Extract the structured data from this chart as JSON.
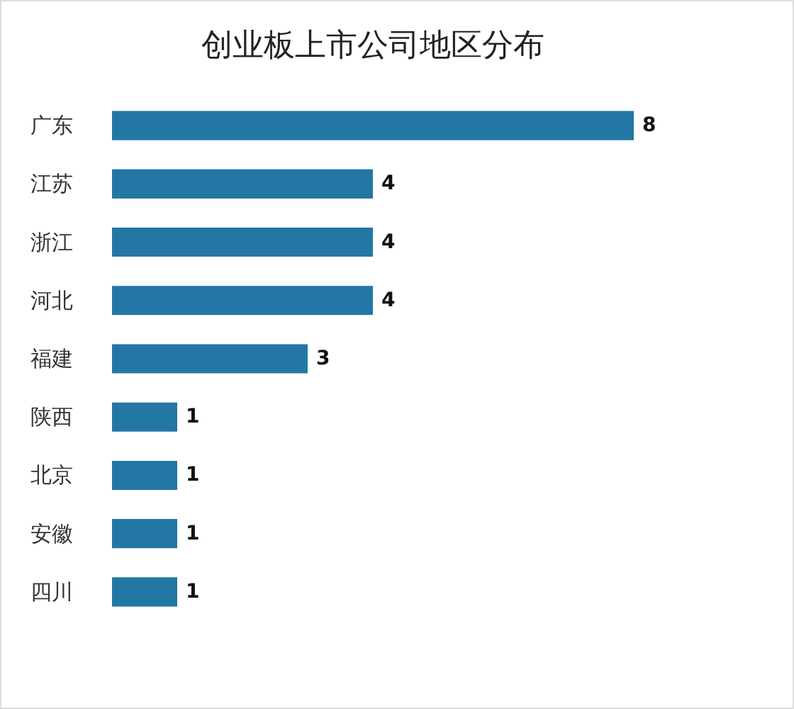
{
  "chart_data": {
    "type": "bar",
    "orientation": "horizontal",
    "title": "创业板上市公司地区分布",
    "categories": [
      "广东",
      "江苏",
      "浙江",
      "河北",
      "福建",
      "陕西",
      "北京",
      "安徽",
      "四川"
    ],
    "values": [
      8,
      4,
      4,
      4,
      3,
      1,
      1,
      1,
      1
    ],
    "color": "#2377a4",
    "data_labels": true,
    "tick_labels": "y"
  }
}
